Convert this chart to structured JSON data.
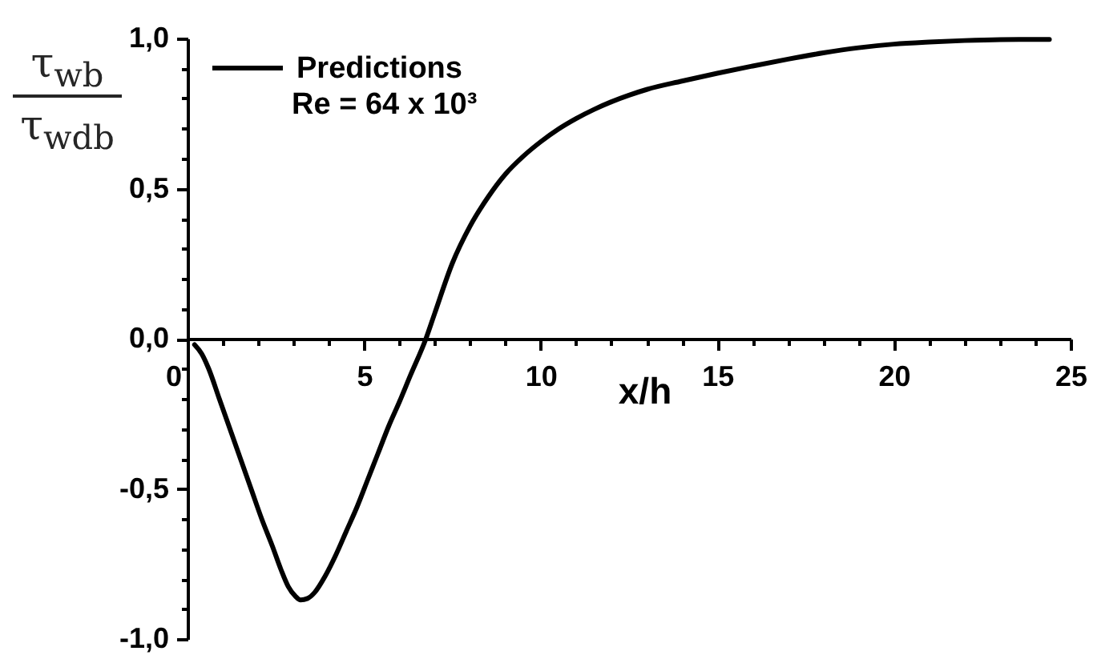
{
  "chart_data": {
    "type": "line",
    "xlabel": "x/h",
    "ylabel": "τ$_{wb}$\nτ$_{wdb}$",
    "x": [
      0.2,
      0.4,
      0.6,
      0.9,
      1.2,
      1.5,
      1.8,
      2.1,
      2.4,
      2.65,
      2.85,
      3.05,
      3.2,
      3.4,
      3.6,
      3.9,
      4.2,
      4.5,
      4.8,
      5.1,
      5.4,
      5.7,
      6,
      6.3,
      6.75,
      7,
      7.5,
      8,
      8.5,
      9,
      9.5,
      10,
      10.5,
      11,
      11.5,
      12,
      12.5,
      13,
      14,
      15,
      16,
      17,
      18,
      19,
      20,
      21,
      22,
      23,
      24.4
    ],
    "series": [
      {
        "name": "Predictions",
        "color": "#000000",
        "values": [
          -0.02,
          -0.05,
          -0.1,
          -0.2,
          -0.3,
          -0.4,
          -0.5,
          -0.6,
          -0.69,
          -0.77,
          -0.825,
          -0.857,
          -0.87,
          -0.865,
          -0.845,
          -0.79,
          -0.72,
          -0.64,
          -0.56,
          -0.47,
          -0.38,
          -0.29,
          -0.21,
          -0.125,
          0,
          0.085,
          0.252,
          0.375,
          0.47,
          0.548,
          0.607,
          0.656,
          0.698,
          0.733,
          0.763,
          0.789,
          0.811,
          0.83,
          0.858,
          0.884,
          0.908,
          0.931,
          0.952,
          0.969,
          0.981,
          0.988,
          0.993,
          0.996,
          0.997
        ]
      }
    ],
    "xlim": [
      0,
      25
    ],
    "ylim": [
      -1,
      1
    ],
    "xticks": [
      0,
      {
        "value": 1,
        "label": null
      },
      {
        "value": 2,
        "label": null
      },
      {
        "value": 3,
        "label": null
      },
      {
        "value": 4,
        "label": null
      },
      5,
      {
        "value": 6,
        "label": null
      },
      {
        "value": 7,
        "label": null
      },
      {
        "value": 8,
        "label": null
      },
      {
        "value": 9,
        "label": null
      },
      10,
      {
        "value": 11,
        "label": null
      },
      {
        "value": 12,
        "label": null
      },
      {
        "value": 13,
        "label": null
      },
      {
        "value": 14,
        "label": null
      },
      15,
      {
        "value": 16,
        "label": null
      },
      {
        "value": 17,
        "label": null
      },
      {
        "value": 18,
        "label": null
      },
      {
        "value": 19,
        "label": null
      },
      20,
      {
        "value": 21,
        "label": null
      },
      {
        "value": 22,
        "label": null
      },
      {
        "value": 23,
        "label": null
      },
      {
        "value": 24,
        "label": null
      },
      25
    ],
    "yticks": [
      {
        "value": -1,
        "label": "-1,0"
      },
      {
        "value": -0.9,
        "label": null
      },
      {
        "value": -0.8,
        "label": null
      },
      {
        "value": -0.7,
        "label": null
      },
      {
        "value": -0.6,
        "label": null
      },
      {
        "value": -0.5,
        "label": "-0,5"
      },
      {
        "value": -0.4,
        "label": null
      },
      {
        "value": -0.3,
        "label": null
      },
      {
        "value": -0.2,
        "label": null
      },
      {
        "value": -0.1,
        "label": null
      },
      {
        "value": 0,
        "label": "0,0"
      },
      {
        "value": 0.1,
        "label": null
      },
      {
        "value": 0.2,
        "label": null
      },
      {
        "value": 0.3,
        "label": null
      },
      {
        "value": 0.4,
        "label": null
      },
      {
        "value": 0.5,
        "label": "0,5"
      },
      {
        "value": 0.6,
        "label": null
      },
      {
        "value": 0.7,
        "label": null
      },
      {
        "value": 0.8,
        "label": null
      },
      {
        "value": 0.9,
        "label": null
      },
      {
        "value": 1,
        "label": "1,0"
      }
    ],
    "legend": "top left",
    "annotations": [
      "Re = 64 x 10³"
    ]
  }
}
